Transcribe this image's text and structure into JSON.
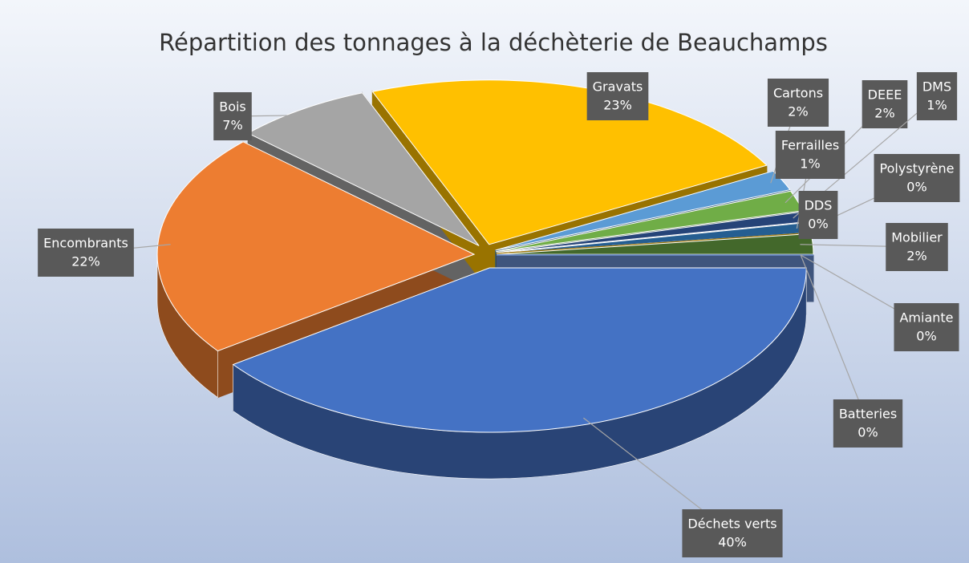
{
  "chart_data": {
    "type": "pie",
    "title": "Répartition des tonnages à la déchèterie de Beauchamps",
    "categories": [
      "Déchets verts",
      "Encombrants",
      "Bois",
      "Gravats",
      "Cartons",
      "DEEE",
      "DMS",
      "Ferrailles",
      "Polystyrène",
      "DDS",
      "Mobilier",
      "Amiante",
      "Batteries"
    ],
    "values": [
      40,
      22,
      7,
      23,
      2,
      2,
      1,
      1,
      0,
      0,
      2,
      0,
      0
    ],
    "value_labels": [
      "40%",
      "22%",
      "7%",
      "23%",
      "2%",
      "2%",
      "1%",
      "1%",
      "0%",
      "0%",
      "2%",
      "0%",
      "0%"
    ],
    "colors": [
      "#4472c4",
      "#ed7d31",
      "#a5a5a5",
      "#ffc000",
      "#5b9bd5",
      "#70ad47",
      "#264478",
      "#255e91",
      "#9e480e",
      "#997300",
      "#43682b",
      "#636363",
      "#698ed0"
    ]
  }
}
